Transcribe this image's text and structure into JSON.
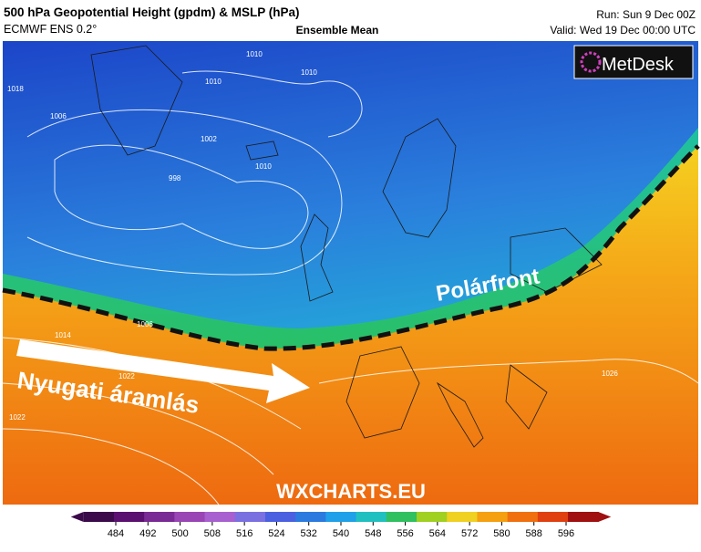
{
  "header": {
    "title": "500 hPa Geopotential Height (gpdm) & MSLP (hPa)",
    "model": "ECMWF ENS 0.2°",
    "subtitle": "Ensemble Mean",
    "run": "Run: Sun 9 Dec 00Z",
    "valid": "Valid: Wed 19 Dec 00:00 UTC"
  },
  "logo": "MetDesk",
  "annotations": {
    "front": "Polárfront",
    "flow": "Nyugati áramlás",
    "watermark": "WXCHARTS.EU"
  },
  "isobar_labels": [
    "1010",
    "1010",
    "1010",
    "1018",
    "1006",
    "1002",
    "998",
    "1010",
    "1014",
    "1022",
    "1006",
    "1022",
    "1026"
  ],
  "colorbar": {
    "ticks": [
      484,
      492,
      500,
      508,
      516,
      524,
      532,
      540,
      548,
      556,
      564,
      572,
      580,
      588,
      596
    ],
    "colors": [
      "#3a0a4a",
      "#5a1070",
      "#7a2a95",
      "#9a45b5",
      "#a85fd0",
      "#7a70e0",
      "#4a60e0",
      "#2a7ae0",
      "#20a0e8",
      "#20c0c0",
      "#30c060",
      "#a0d020",
      "#f0d020",
      "#f5a010",
      "#f07010",
      "#e04010",
      "#a01010"
    ]
  }
}
